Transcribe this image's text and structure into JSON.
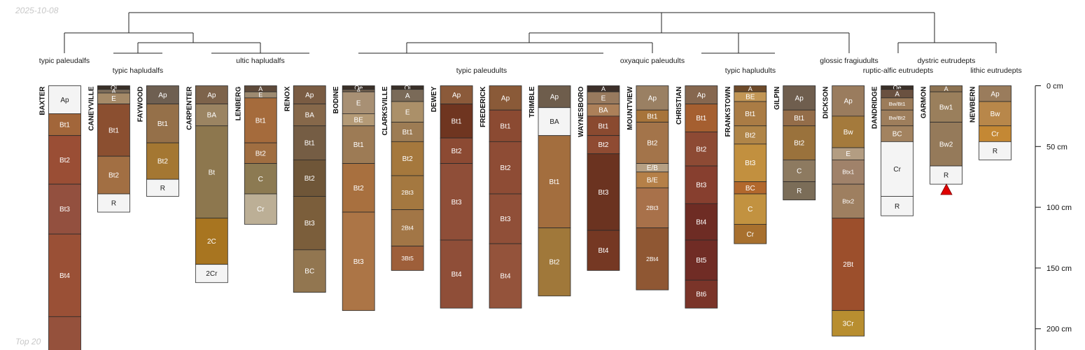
{
  "date_stamp": "2025-10-08",
  "footer_label": "Top 20",
  "depth_axis": {
    "unit": "cm",
    "max": 220,
    "ticks": [
      {
        "depth": 0,
        "label": "0 cm"
      },
      {
        "depth": 50,
        "label": "50 cm"
      },
      {
        "depth": 100,
        "label": "100 cm"
      },
      {
        "depth": 150,
        "label": "150 cm"
      },
      {
        "depth": 200,
        "label": "200 cm"
      }
    ]
  },
  "group_labels": [
    {
      "text": "typic paleudalfs"
    },
    {
      "text": "typic hapludalfs"
    },
    {
      "text": "ultic hapludalfs"
    },
    {
      "text": "typic paleudults"
    },
    {
      "text": "oxyaquic paleudults"
    },
    {
      "text": "typic hapludults"
    },
    {
      "text": "glossic fragiudults"
    },
    {
      "text": "dystric eutrudepts"
    },
    {
      "text": "ruptic-alfic eutrudepts"
    },
    {
      "text": "lithic eutrudepts"
    }
  ],
  "profiles": [
    {
      "name": "BAXTER",
      "horizons": [
        {
          "name": "Ap",
          "top": 0,
          "bottom": 23,
          "color": "#f4f4f4"
        },
        {
          "name": "Bt1",
          "top": 23,
          "bottom": 41,
          "color": "#a2663a"
        },
        {
          "name": "Bt2",
          "top": 41,
          "bottom": 81,
          "color": "#9a4e35"
        },
        {
          "name": "Bt3",
          "top": 81,
          "bottom": 122,
          "color": "#93503f"
        },
        {
          "name": "Bt4",
          "top": 122,
          "bottom": 190,
          "color": "#9a5036"
        },
        {
          "name": "",
          "top": 190,
          "bottom": 230,
          "color": "#95513c"
        }
      ]
    },
    {
      "name": "CANEYVILLE",
      "horizons": [
        {
          "name": "Oi",
          "top": 0,
          "bottom": 3,
          "color": "#3a3028"
        },
        {
          "name": "A",
          "top": 3,
          "bottom": 6,
          "color": "#7b6b59"
        },
        {
          "name": "E",
          "top": 6,
          "bottom": 15,
          "color": "#a58a68"
        },
        {
          "name": "Bt1",
          "top": 15,
          "bottom": 58,
          "color": "#8b4f30"
        },
        {
          "name": "Bt2",
          "top": 58,
          "bottom": 89,
          "color": "#a26f43"
        },
        {
          "name": "R",
          "top": 89,
          "bottom": 104,
          "color": "#f4f4f4"
        }
      ]
    },
    {
      "name": "FAYWOOD",
      "horizons": [
        {
          "name": "Ap",
          "top": 0,
          "bottom": 15,
          "color": "#6e5f51"
        },
        {
          "name": "Bt1",
          "top": 15,
          "bottom": 47,
          "color": "#957049"
        },
        {
          "name": "Bt2",
          "top": 47,
          "bottom": 77,
          "color": "#a47732"
        },
        {
          "name": "R",
          "top": 77,
          "bottom": 91,
          "color": "#f4f4f4"
        }
      ]
    },
    {
      "name": "CARPENTER",
      "horizons": [
        {
          "name": "Ap",
          "top": 0,
          "bottom": 15,
          "color": "#7d634b"
        },
        {
          "name": "BA",
          "top": 15,
          "bottom": 33,
          "color": "#9b8462"
        },
        {
          "name": "Bt",
          "top": 33,
          "bottom": 109,
          "color": "#8d774e"
        },
        {
          "name": "2C",
          "top": 109,
          "bottom": 147,
          "color": "#a87520"
        },
        {
          "name": "2Cr",
          "top": 147,
          "bottom": 162,
          "color": "#f4f4f4"
        }
      ]
    },
    {
      "name": "LENBERG",
      "horizons": [
        {
          "name": "A",
          "top": 0,
          "bottom": 5,
          "color": "#5e4a3a"
        },
        {
          "name": "E",
          "top": 5,
          "bottom": 10,
          "color": "#9d8a70"
        },
        {
          "name": "Bt1",
          "top": 10,
          "bottom": 47,
          "color": "#a56b3c"
        },
        {
          "name": "Bt2",
          "top": 47,
          "bottom": 64,
          "color": "#a06e41"
        },
        {
          "name": "C",
          "top": 64,
          "bottom": 89,
          "color": "#8c7a52"
        },
        {
          "name": "Cr",
          "top": 89,
          "bottom": 114,
          "color": "#bcaf96"
        }
      ]
    },
    {
      "name": "RENOX",
      "horizons": [
        {
          "name": "Ap",
          "top": 0,
          "bottom": 15,
          "color": "#7a5c43"
        },
        {
          "name": "BA",
          "top": 15,
          "bottom": 33,
          "color": "#86684a"
        },
        {
          "name": "Bt1",
          "top": 33,
          "bottom": 61,
          "color": "#755d44"
        },
        {
          "name": "Bt2",
          "top": 61,
          "bottom": 91,
          "color": "#6f5638"
        },
        {
          "name": "Bt3",
          "top": 91,
          "bottom": 135,
          "color": "#7b5e3b"
        },
        {
          "name": "BC",
          "top": 135,
          "bottom": 170,
          "color": "#927650"
        }
      ]
    },
    {
      "name": "BODINE",
      "horizons": [
        {
          "name": "Oe",
          "top": 0,
          "bottom": 3,
          "color": "#3b3028"
        },
        {
          "name": "A",
          "top": 3,
          "bottom": 5,
          "color": "#6e5e4d"
        },
        {
          "name": "E",
          "top": 5,
          "bottom": 23,
          "color": "#a89074"
        },
        {
          "name": "BE",
          "top": 23,
          "bottom": 33,
          "color": "#b49a76"
        },
        {
          "name": "Bt1",
          "top": 33,
          "bottom": 64,
          "color": "#9d7b55"
        },
        {
          "name": "Bt2",
          "top": 64,
          "bottom": 104,
          "color": "#a8703f"
        },
        {
          "name": "Bt3",
          "top": 104,
          "bottom": 185,
          "color": "#ac7546"
        }
      ]
    },
    {
      "name": "CLARKSVILLE",
      "horizons": [
        {
          "name": "Oi",
          "top": 0,
          "bottom": 3,
          "color": "#3a3028"
        },
        {
          "name": "A",
          "top": 3,
          "bottom": 13,
          "color": "#7a6a58"
        },
        {
          "name": "E",
          "top": 13,
          "bottom": 30,
          "color": "#ab9069"
        },
        {
          "name": "Bt1",
          "top": 30,
          "bottom": 46,
          "color": "#9d7c54"
        },
        {
          "name": "Bt2",
          "top": 46,
          "bottom": 74,
          "color": "#a5783d"
        },
        {
          "name": "2Bt3",
          "top": 74,
          "bottom": 102,
          "color": "#a47840"
        },
        {
          "name": "2Bt4",
          "top": 102,
          "bottom": 132,
          "color": "#a27646"
        },
        {
          "name": "3Bt5",
          "top": 132,
          "bottom": 152,
          "color": "#9e5f3a"
        }
      ]
    },
    {
      "name": "DEWEY",
      "horizons": [
        {
          "name": "Ap",
          "top": 0,
          "bottom": 15,
          "color": "#8b5a3a"
        },
        {
          "name": "Bt1",
          "top": 15,
          "bottom": 43,
          "color": "#6f3520"
        },
        {
          "name": "Bt2",
          "top": 43,
          "bottom": 64,
          "color": "#8c4a33"
        },
        {
          "name": "Bt3",
          "top": 64,
          "bottom": 127,
          "color": "#8f4e38"
        },
        {
          "name": "Bt4",
          "top": 127,
          "bottom": 183,
          "color": "#8f4e38"
        }
      ]
    },
    {
      "name": "FREDERICK",
      "horizons": [
        {
          "name": "Ap",
          "top": 0,
          "bottom": 20,
          "color": "#8a5a38"
        },
        {
          "name": "Bt1",
          "top": 20,
          "bottom": 46,
          "color": "#8b4a32"
        },
        {
          "name": "Bt2",
          "top": 46,
          "bottom": 89,
          "color": "#8e4c35"
        },
        {
          "name": "Bt3",
          "top": 89,
          "bottom": 130,
          "color": "#904f38"
        },
        {
          "name": "Bt4",
          "top": 130,
          "bottom": 183,
          "color": "#94533b"
        }
      ]
    },
    {
      "name": "TRIMBLE",
      "horizons": [
        {
          "name": "Ap",
          "top": 0,
          "bottom": 18,
          "color": "#6e5d4c"
        },
        {
          "name": "BA",
          "top": 18,
          "bottom": 41,
          "color": "#f4f4f4"
        },
        {
          "name": "Bt1",
          "top": 41,
          "bottom": 117,
          "color": "#a36e3e"
        },
        {
          "name": "Bt2",
          "top": 117,
          "bottom": 173,
          "color": "#a0783a"
        }
      ]
    },
    {
      "name": "WAYNESBORO",
      "horizons": [
        {
          "name": "A",
          "top": 0,
          "bottom": 5,
          "color": "#3d302a"
        },
        {
          "name": "E",
          "top": 5,
          "bottom": 15,
          "color": "#987a5e"
        },
        {
          "name": "BA",
          "top": 15,
          "bottom": 25,
          "color": "#ac8059"
        },
        {
          "name": "Bt1",
          "top": 25,
          "bottom": 41,
          "color": "#8a4a30"
        },
        {
          "name": "Bt2",
          "top": 41,
          "bottom": 56,
          "color": "#8f4b32"
        },
        {
          "name": "Bt3",
          "top": 56,
          "bottom": 119,
          "color": "#6b3320"
        },
        {
          "name": "Bt4",
          "top": 119,
          "bottom": 152,
          "color": "#753823"
        }
      ]
    },
    {
      "name": "MOUNTVIEW",
      "horizons": [
        {
          "name": "Ap",
          "top": 0,
          "bottom": 20,
          "color": "#9a8063"
        },
        {
          "name": "Bt1",
          "top": 20,
          "bottom": 30,
          "color": "#a7743a"
        },
        {
          "name": "Bt2",
          "top": 30,
          "bottom": 64,
          "color": "#a3744a"
        },
        {
          "name": "E/B",
          "top": 64,
          "bottom": 71,
          "color": "#b6a084"
        },
        {
          "name": "B/E",
          "top": 71,
          "bottom": 84,
          "color": "#b58048"
        },
        {
          "name": "2Bt3",
          "top": 84,
          "bottom": 117,
          "color": "#a8714a"
        },
        {
          "name": "2Bt4",
          "top": 117,
          "bottom": 168,
          "color": "#8f5733"
        }
      ]
    },
    {
      "name": "CHRISTIAN",
      "horizons": [
        {
          "name": "Ap",
          "top": 0,
          "bottom": 15,
          "color": "#86674f"
        },
        {
          "name": "Bt1",
          "top": 15,
          "bottom": 38,
          "color": "#a55f30"
        },
        {
          "name": "Bt2",
          "top": 38,
          "bottom": 66,
          "color": "#8d4a34"
        },
        {
          "name": "Bt3",
          "top": 66,
          "bottom": 97,
          "color": "#873f2f"
        },
        {
          "name": "Bt4",
          "top": 97,
          "bottom": 127,
          "color": "#6e2c24"
        },
        {
          "name": "Bt5",
          "top": 127,
          "bottom": 160,
          "color": "#702c25"
        },
        {
          "name": "Bt6",
          "top": 160,
          "bottom": 183,
          "color": "#7a3429"
        }
      ]
    },
    {
      "name": "FRANKSTOWN",
      "horizons": [
        {
          "name": "A",
          "top": 0,
          "bottom": 5,
          "color": "#6d4a2a"
        },
        {
          "name": "BE",
          "top": 5,
          "bottom": 13,
          "color": "#c29655"
        },
        {
          "name": "Bt1",
          "top": 13,
          "bottom": 33,
          "color": "#aa7c45"
        },
        {
          "name": "Bt2",
          "top": 33,
          "bottom": 48,
          "color": "#b08548"
        },
        {
          "name": "Bt3",
          "top": 48,
          "bottom": 79,
          "color": "#c2903f"
        },
        {
          "name": "BC",
          "top": 79,
          "bottom": 89,
          "color": "#b2682c"
        },
        {
          "name": "C",
          "top": 89,
          "bottom": 114,
          "color": "#c29240"
        },
        {
          "name": "Cr",
          "top": 114,
          "bottom": 130,
          "color": "#a8702e"
        }
      ]
    },
    {
      "name": "GILPIN",
      "horizons": [
        {
          "name": "Ap",
          "top": 0,
          "bottom": 20,
          "color": "#6f5e4e"
        },
        {
          "name": "Bt1",
          "top": 20,
          "bottom": 33,
          "color": "#946d49"
        },
        {
          "name": "Bt2",
          "top": 33,
          "bottom": 61,
          "color": "#9a723c"
        },
        {
          "name": "C",
          "top": 61,
          "bottom": 79,
          "color": "#8d7a60"
        },
        {
          "name": "R",
          "top": 79,
          "bottom": 94,
          "color": "#7b6d58"
        }
      ]
    },
    {
      "name": "DICKSON",
      "horizons": [
        {
          "name": "Ap",
          "top": 0,
          "bottom": 25,
          "color": "#9a7c5e"
        },
        {
          "name": "Bw",
          "top": 25,
          "bottom": 51,
          "color": "#a47a3c"
        },
        {
          "name": "E",
          "top": 51,
          "bottom": 61,
          "color": "#b39d82"
        },
        {
          "name": "Btx1",
          "top": 61,
          "bottom": 81,
          "color": "#a0826a"
        },
        {
          "name": "Btx2",
          "top": 81,
          "bottom": 109,
          "color": "#9e7f60"
        },
        {
          "name": "2Bt",
          "top": 109,
          "bottom": 185,
          "color": "#9c4f2c"
        },
        {
          "name": "3Cr",
          "top": 185,
          "bottom": 206,
          "color": "#b88e30"
        }
      ]
    },
    {
      "name": "DANDRIDGE",
      "horizons": [
        {
          "name": "Oe",
          "top": 0,
          "bottom": 3,
          "color": "#3b3028"
        },
        {
          "name": "A",
          "top": 3,
          "bottom": 10,
          "color": "#6a5140"
        },
        {
          "name": "Bw/Bt1",
          "top": 10,
          "bottom": 20,
          "color": "#9c7c5a"
        },
        {
          "name": "Bw/Bt2",
          "top": 20,
          "bottom": 33,
          "color": "#9e7e5c"
        },
        {
          "name": "BC",
          "top": 33,
          "bottom": 46,
          "color": "#a38360"
        },
        {
          "name": "Cr",
          "top": 46,
          "bottom": 91,
          "color": "#f4f4f4"
        },
        {
          "name": "R",
          "top": 91,
          "bottom": 107,
          "color": "#f4f4f4"
        }
      ]
    },
    {
      "name": "GARMON",
      "horizons": [
        {
          "name": "A",
          "top": 0,
          "bottom": 5,
          "color": "#8c7252"
        },
        {
          "name": "Bw1",
          "top": 5,
          "bottom": 30,
          "color": "#9a7f5c"
        },
        {
          "name": "Bw2",
          "top": 30,
          "bottom": 66,
          "color": "#957a5a"
        },
        {
          "name": "R",
          "top": 66,
          "bottom": 81,
          "color": "#f4f4f4"
        }
      ]
    },
    {
      "name": "NEWBERN",
      "horizons": [
        {
          "name": "Ap",
          "top": 0,
          "bottom": 13,
          "color": "#9a7c5c"
        },
        {
          "name": "Bw",
          "top": 13,
          "bottom": 33,
          "color": "#b8874a"
        },
        {
          "name": "Cr",
          "top": 33,
          "bottom": 46,
          "color": "#c48834"
        },
        {
          "name": "R",
          "top": 46,
          "bottom": 61,
          "color": "#f4f4f4"
        }
      ]
    }
  ]
}
